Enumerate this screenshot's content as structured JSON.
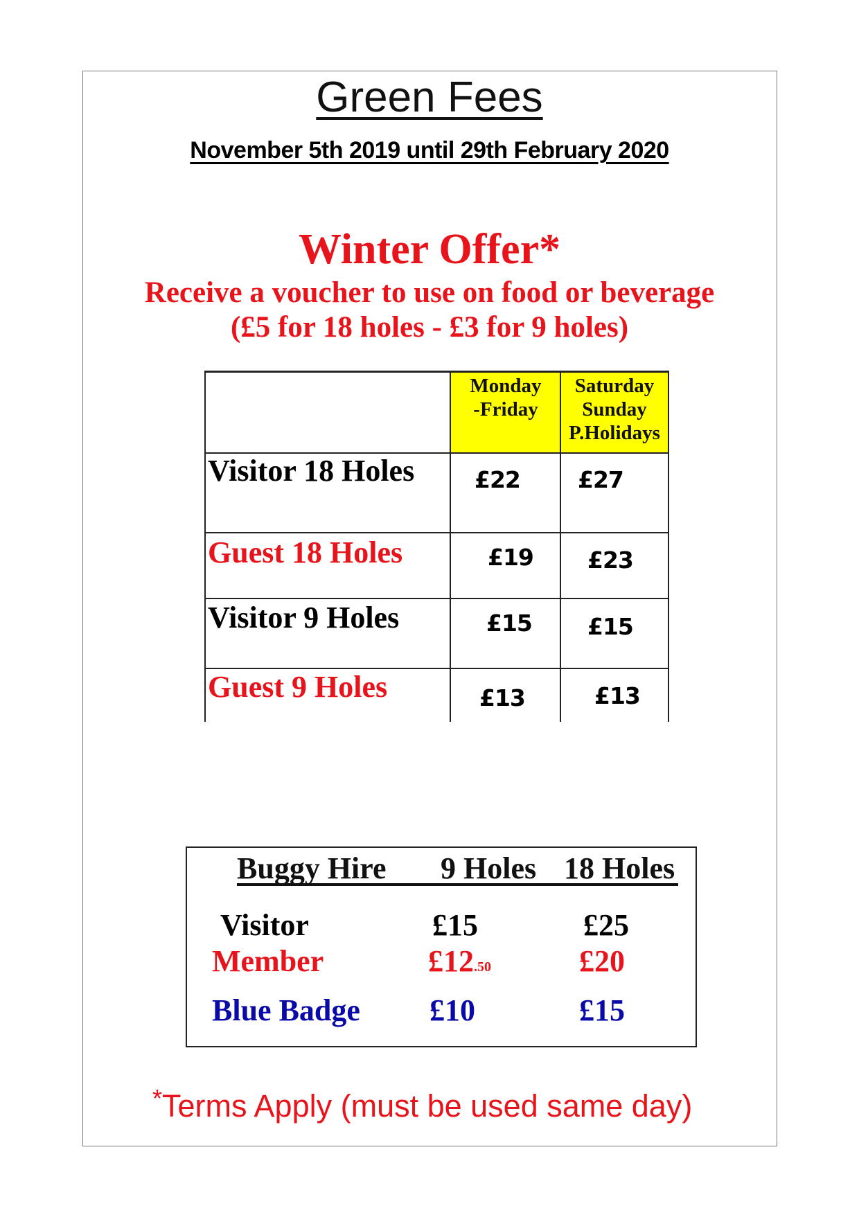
{
  "title": "Green Fees",
  "date_range": "November 5th 2019 until 29th February 2020",
  "offer": {
    "heading": "Winter Offer*",
    "line1": "Receive a voucher to use on food or beverage",
    "line2": "(£5 for 18 holes - £3 for 9 holes)"
  },
  "green_fees": {
    "columns": [
      {
        "line1": "Monday",
        "line2": "-Friday",
        "line3": ""
      },
      {
        "line1": "Saturday",
        "line2": "Sunday",
        "line3": "P.Holidays"
      }
    ],
    "header_color": "#ffff00",
    "rows": [
      {
        "label": "Visitor 18 Holes",
        "color": "#000000",
        "weekday": "£22",
        "weekend": "£27"
      },
      {
        "label": "Guest 18 Holes",
        "color": "#e8141b",
        "weekday": "£19",
        "weekend": "£23"
      },
      {
        "label": "Visitor 9 Holes",
        "color": "#000000",
        "weekday": "£15",
        "weekend": "£15"
      },
      {
        "label": "Guest 9 Holes",
        "color": "#e8141b",
        "weekday": "£13",
        "weekend": "£13"
      }
    ]
  },
  "buggy": {
    "heading": "Buggy Hire",
    "col_9": "9 Holes",
    "col_18": "18 Holes",
    "rows": [
      {
        "label": "Visitor",
        "nine": "£15",
        "nine_pence": "",
        "eighteen": "£25",
        "color": "#000000"
      },
      {
        "label": "Member",
        "nine": "£12",
        "nine_pence": ".50",
        "eighteen": "£20",
        "color": "#e8141b"
      },
      {
        "label": "Blue Badge",
        "nine": "£10",
        "nine_pence": "",
        "eighteen": "£15",
        "color": "#0a0aa8"
      }
    ]
  },
  "terms": {
    "asterisk": "*",
    "text": "Terms Apply (must be used same day)"
  }
}
